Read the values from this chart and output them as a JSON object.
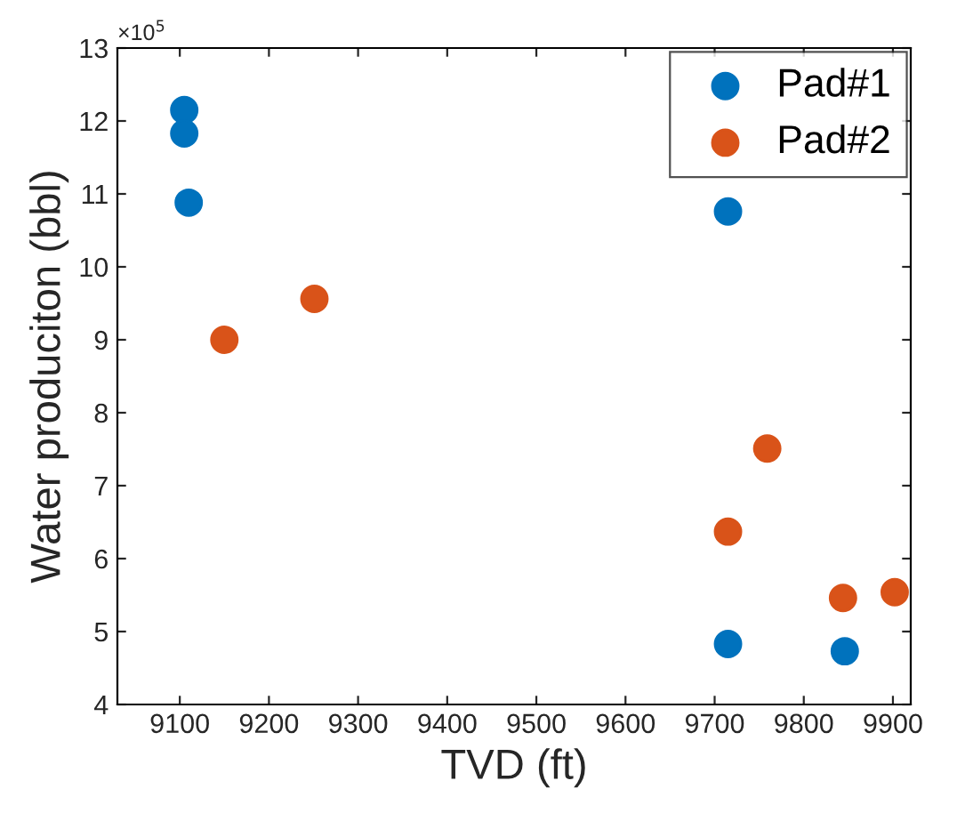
{
  "chart_data": {
    "type": "scatter",
    "xlabel": "TVD (ft)",
    "ylabel": "Water produciton (bbl)",
    "annotations": [
      "×10$^{5}$"
    ],
    "xlim": [
      9030,
      9920
    ],
    "xticks": [
      9100,
      9200,
      9300,
      9400,
      9500,
      9600,
      9700,
      9800,
      9900
    ],
    "ylim": [
      4,
      13
    ],
    "yticks": [
      4,
      5,
      6,
      7,
      8,
      9,
      10,
      11,
      12,
      13
    ],
    "grid": false,
    "legend": "top right",
    "marker": "circle",
    "series": [
      {
        "name": "Pad#1",
        "color": "#0072bd",
        "x": [
          9105,
          9105,
          9110,
          9715,
          9715,
          9846
        ],
        "values": [
          12.15,
          11.83,
          10.88,
          10.76,
          4.83,
          4.73
        ]
      },
      {
        "name": "Pad#2",
        "color": "#d95319",
        "x": [
          9150,
          9251,
          9715,
          9759,
          9844,
          9902
        ],
        "values": [
          9.0,
          9.56,
          6.37,
          7.51,
          5.46,
          5.54
        ]
      }
    ]
  }
}
